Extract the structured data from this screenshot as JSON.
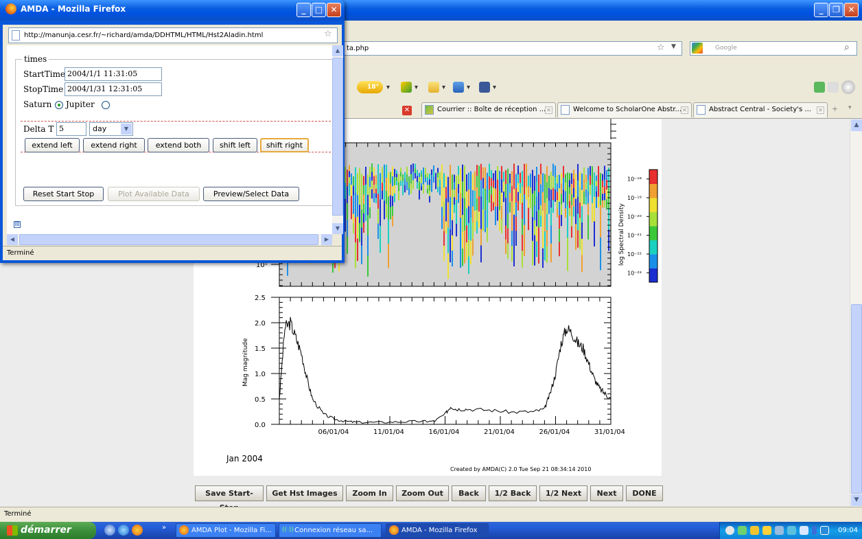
{
  "main_window": {
    "url_visible": "ta.php",
    "search_placeholder": "Google",
    "weather_temp": "18°",
    "tabs": [
      {
        "label": "Courrier :: Boîte de réception ..."
      },
      {
        "label": "Welcome to ScholarOne Abstr..."
      },
      {
        "label": "Abstract Central - Society's ..."
      }
    ],
    "tab_plus": "+",
    "status": "Terminé"
  },
  "popup": {
    "title": "AMDA - Mozilla Firefox",
    "url": "http://manunja.cesr.fr/~richard/amda/DDHTML/HTML/Hst2Aladin.html",
    "legend": "times",
    "start_label": "StartTime",
    "start_value": "2004/1/1 11:31:05",
    "stop_label": "StopTime",
    "stop_value": "2004/1/31 12:31:05",
    "saturn_label": "Saturn",
    "jupiter_label": "Jupiter",
    "planet_selected": "Saturn",
    "delta_label": "Delta T",
    "delta_value": "5",
    "delta_unit": "day",
    "buttons": {
      "extend_left": "extend left",
      "extend_right": "extend right",
      "extend_both": "extend both",
      "shift_left": "shift left",
      "shift_right": "shift right",
      "reset": "Reset Start Stop",
      "plot_available": "Plot Available Data",
      "preview": "Preview/Select Data"
    },
    "expand_glyph": "⊞",
    "status": "Terminé"
  },
  "plot_buttons": {
    "save": "Save Start-Stop",
    "get_hst": "Get Hst Images",
    "zoom_in": "Zoom In",
    "zoom_out": "Zoom Out",
    "back": "Back",
    "half_back": "1/2 Back",
    "half_next": "1/2 Next",
    "next": "Next",
    "done": "DONE"
  },
  "taskbar": {
    "start": "démarrer",
    "items": [
      {
        "label": "AMDA Plot - Mozilla Fi..."
      },
      {
        "label": "Connexion réseau sa..."
      },
      {
        "label": "AMDA - Mozilla Firefox"
      }
    ],
    "clock": "09:04"
  },
  "chart_data": [
    {
      "type": "heatmap",
      "ylabel": "",
      "ytick_labels": [
        "10¹"
      ],
      "colorbar_label": "log Spectral Density",
      "colorbar_ticks": [
        "10⁻¹⁸",
        "10⁻¹⁹",
        "10⁻²⁰",
        "10⁻²¹",
        "10⁻²²",
        "10⁻²³"
      ],
      "colorbar_range_log10": [
        -23.5,
        -17.5
      ],
      "background_color": "#d3d3d3"
    },
    {
      "type": "line",
      "ylabel": "Mag magnitude",
      "ylim": [
        0.0,
        2.5
      ],
      "yticks": [
        "0.0",
        "0.5",
        "1.0",
        "1.5",
        "2.0",
        "2.5"
      ],
      "xlabel": "Jan 2004",
      "xticks": [
        "06/01/04",
        "11/01/04",
        "16/01/04",
        "21/01/04",
        "26/01/04",
        "31/01/04"
      ],
      "xlim_days": [
        1,
        31
      ],
      "x": [
        1.0,
        1.5,
        2.0,
        2.5,
        3.0,
        3.5,
        4.0,
        5.0,
        6.0,
        7.0,
        8.0,
        10.0,
        12.0,
        14.0,
        15.0,
        16.0,
        16.5,
        17.0,
        18.0,
        20.0,
        22.0,
        24.0,
        25.0,
        25.5,
        26.0,
        26.5,
        27.0,
        27.5,
        28.0,
        28.5,
        29.0,
        29.5,
        30.0,
        30.5,
        31.0
      ],
      "y": [
        0.5,
        1.9,
        2.0,
        1.7,
        1.4,
        0.9,
        0.5,
        0.2,
        0.1,
        0.06,
        0.04,
        0.04,
        0.05,
        0.06,
        0.06,
        0.2,
        0.35,
        0.3,
        0.3,
        0.28,
        0.24,
        0.25,
        0.3,
        0.6,
        1.0,
        1.6,
        1.9,
        1.8,
        1.6,
        1.5,
        1.2,
        0.9,
        0.7,
        0.6,
        0.5
      ]
    }
  ],
  "credit": "Created by AMDA(C)  2.0 Tue Sep 21 08:34:14 2010"
}
